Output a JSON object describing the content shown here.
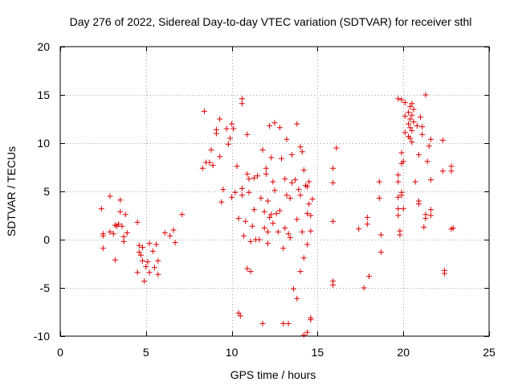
{
  "chart_data": {
    "type": "scatter",
    "title": "Day 276 of 2022, Sidereal Day-to-day VTEC variation (SDTVAR) for receiver sthl",
    "xlabel": "GPS time / hours",
    "ylabel": "SDTVAR / TECUs",
    "xlim": [
      0,
      25
    ],
    "ylim": [
      -10,
      20
    ],
    "xticks": [
      0,
      5,
      10,
      15,
      20,
      25
    ],
    "yticks": [
      -10,
      -5,
      0,
      5,
      10,
      15,
      20
    ],
    "xtick_labels": [
      "0",
      "5",
      "10",
      "15",
      "20",
      "25"
    ],
    "ytick_labels": [
      "-10",
      "-5",
      "0",
      "5",
      "10",
      "15",
      "20"
    ],
    "grid": true,
    "marker": "+",
    "color": "#dd0000",
    "series": [
      {
        "name": "sthl",
        "points": [
          [
            2.4,
            3.2
          ],
          [
            2.5,
            0.6
          ],
          [
            2.5,
            0.4
          ],
          [
            2.5,
            -0.9
          ],
          [
            2.9,
            4.5
          ],
          [
            2.9,
            0.8
          ],
          [
            3.1,
            0.6
          ],
          [
            3.2,
            1.5
          ],
          [
            3.2,
            -2.1
          ],
          [
            3.3,
            1.4
          ],
          [
            3.4,
            1.6
          ],
          [
            3.5,
            4.1
          ],
          [
            3.5,
            2.9
          ],
          [
            3.6,
            1.4
          ],
          [
            3.7,
            0.3
          ],
          [
            3.7,
            -0.2
          ],
          [
            3.8,
            2.6
          ],
          [
            3.9,
            0.7
          ],
          [
            4.5,
            1.8
          ],
          [
            4.5,
            -3.4
          ],
          [
            4.6,
            -0.6
          ],
          [
            4.6,
            -1.3
          ],
          [
            4.7,
            -1.6
          ],
          [
            4.8,
            -2.2
          ],
          [
            4.8,
            -0.8
          ],
          [
            4.9,
            -4.3
          ],
          [
            5.0,
            -2.8
          ],
          [
            5.1,
            -2.3
          ],
          [
            5.2,
            -3.4
          ],
          [
            5.2,
            -0.4
          ],
          [
            5.4,
            -1.2
          ],
          [
            5.5,
            -2.9
          ],
          [
            5.6,
            -0.5
          ],
          [
            5.7,
            -2.2
          ],
          [
            5.7,
            -3.6
          ],
          [
            6.1,
            0.7
          ],
          [
            6.4,
            0.4
          ],
          [
            6.6,
            1.0
          ],
          [
            6.7,
            -0.3
          ],
          [
            7.1,
            2.6
          ],
          [
            8.3,
            7.4
          ],
          [
            8.4,
            13.3
          ],
          [
            8.5,
            8.0
          ],
          [
            8.7,
            8.0
          ],
          [
            8.8,
            9.3
          ],
          [
            8.9,
            7.7
          ],
          [
            9.1,
            11.4
          ],
          [
            9.1,
            11.0
          ],
          [
            9.3,
            8.6
          ],
          [
            9.3,
            12.5
          ],
          [
            9.4,
            3.9
          ],
          [
            9.5,
            5.2
          ],
          [
            9.7,
            11.5
          ],
          [
            9.8,
            9.9
          ],
          [
            9.9,
            10.5
          ],
          [
            10.0,
            4.4
          ],
          [
            10.0,
            12.0
          ],
          [
            10.1,
            11.5
          ],
          [
            10.2,
            4.9
          ],
          [
            10.3,
            7.6
          ],
          [
            10.4,
            2.2
          ],
          [
            10.4,
            -7.6
          ],
          [
            10.5,
            -7.9
          ],
          [
            10.6,
            14.6
          ],
          [
            10.6,
            14.1
          ],
          [
            10.6,
            5.3
          ],
          [
            10.6,
            4.6
          ],
          [
            10.7,
            0.4
          ],
          [
            10.8,
            1.9
          ],
          [
            10.9,
            -3.0
          ],
          [
            10.9,
            10.9
          ],
          [
            10.9,
            6.8
          ],
          [
            11.0,
            6.3
          ],
          [
            11.0,
            4.9
          ],
          [
            11.1,
            -0.2
          ],
          [
            11.1,
            -3.3
          ],
          [
            11.2,
            1.4
          ],
          [
            11.3,
            6.4
          ],
          [
            11.3,
            3.1
          ],
          [
            11.4,
            0.0
          ],
          [
            11.5,
            6.6
          ],
          [
            11.6,
            0.0
          ],
          [
            11.7,
            4.3
          ],
          [
            11.8,
            9.3
          ],
          [
            11.8,
            -8.7
          ],
          [
            11.9,
            2.9
          ],
          [
            11.9,
            1.2
          ],
          [
            12.0,
            7.4
          ],
          [
            12.0,
            6.8
          ],
          [
            12.1,
            4.0
          ],
          [
            12.1,
            0.8
          ],
          [
            12.1,
            -0.4
          ],
          [
            12.2,
            11.8
          ],
          [
            12.2,
            2.3
          ],
          [
            12.3,
            8.5
          ],
          [
            12.3,
            2.6
          ],
          [
            12.4,
            6.0
          ],
          [
            12.4,
            1.7
          ],
          [
            12.5,
            12.1
          ],
          [
            12.5,
            5.1
          ],
          [
            12.6,
            2.7
          ],
          [
            12.7,
            0.8
          ],
          [
            12.8,
            11.6
          ],
          [
            12.8,
            3.0
          ],
          [
            12.9,
            8.4
          ],
          [
            13.0,
            -0.9
          ],
          [
            13.0,
            -8.7
          ],
          [
            13.1,
            6.3
          ],
          [
            13.1,
            1.2
          ],
          [
            13.2,
            10.4
          ],
          [
            13.2,
            4.6
          ],
          [
            13.3,
            0.6
          ],
          [
            13.3,
            -8.7
          ],
          [
            13.4,
            4.3
          ],
          [
            13.4,
            0.2
          ],
          [
            13.5,
            8.8
          ],
          [
            13.5,
            5.9
          ],
          [
            13.6,
            -5.1
          ],
          [
            13.7,
            6.2
          ],
          [
            13.8,
            12.0
          ],
          [
            13.8,
            2.1
          ],
          [
            13.8,
            -6.1
          ],
          [
            13.9,
            5.2
          ],
          [
            14.0,
            9.6
          ],
          [
            14.0,
            4.6
          ],
          [
            14.0,
            -3.3
          ],
          [
            14.1,
            9.1
          ],
          [
            14.1,
            0.8
          ],
          [
            14.2,
            7.2
          ],
          [
            14.2,
            -1.9
          ],
          [
            14.2,
            -9.9
          ],
          [
            14.3,
            5.6
          ],
          [
            14.4,
            5.5
          ],
          [
            14.4,
            2.7
          ],
          [
            14.4,
            -0.5
          ],
          [
            14.4,
            -9.6
          ],
          [
            14.5,
            6.0
          ],
          [
            14.5,
            3.7
          ],
          [
            14.6,
            2.5
          ],
          [
            14.6,
            0.9
          ],
          [
            14.6,
            -8.1
          ],
          [
            14.6,
            -8.3
          ],
          [
            14.7,
            4.2
          ],
          [
            15.9,
            7.4
          ],
          [
            15.9,
            5.9
          ],
          [
            15.9,
            1.9
          ],
          [
            15.9,
            -4.3
          ],
          [
            15.9,
            -4.7
          ],
          [
            16.1,
            9.5
          ],
          [
            17.4,
            1.1
          ],
          [
            17.7,
            -5.0
          ],
          [
            17.9,
            2.3
          ],
          [
            17.9,
            1.6
          ],
          [
            18.0,
            -3.8
          ],
          [
            18.6,
            6.0
          ],
          [
            18.6,
            4.3
          ],
          [
            18.7,
            0.5
          ],
          [
            18.7,
            -1.3
          ],
          [
            19.7,
            14.6
          ],
          [
            19.7,
            6.7
          ],
          [
            19.7,
            6.0
          ],
          [
            19.7,
            4.4
          ],
          [
            19.7,
            3.2
          ],
          [
            19.7,
            2.5
          ],
          [
            19.8,
            0.9
          ],
          [
            19.8,
            0.5
          ],
          [
            19.9,
            14.5
          ],
          [
            19.9,
            9.0
          ],
          [
            19.9,
            7.9
          ],
          [
            19.9,
            4.9
          ],
          [
            19.9,
            4.6
          ],
          [
            20.0,
            8.1
          ],
          [
            20.0,
            3.2
          ],
          [
            20.1,
            14.2
          ],
          [
            20.1,
            12.8
          ],
          [
            20.1,
            11.1
          ],
          [
            20.3,
            13.2
          ],
          [
            20.3,
            12.0
          ],
          [
            20.3,
            10.7
          ],
          [
            20.4,
            13.8
          ],
          [
            20.4,
            12.5
          ],
          [
            20.4,
            11.6
          ],
          [
            20.4,
            10.5
          ],
          [
            20.5,
            14.1
          ],
          [
            20.5,
            12.9
          ],
          [
            20.5,
            11.3
          ],
          [
            20.5,
            10.1
          ],
          [
            20.6,
            13.5
          ],
          [
            20.6,
            12.2
          ],
          [
            20.7,
            6.0
          ],
          [
            20.8,
            11.8
          ],
          [
            20.9,
            8.8
          ],
          [
            20.9,
            4.0
          ],
          [
            20.9,
            3.7
          ],
          [
            21.0,
            12.7
          ],
          [
            21.1,
            11.7
          ],
          [
            21.1,
            10.9
          ],
          [
            21.2,
            1.3
          ],
          [
            21.3,
            15.0
          ],
          [
            21.3,
            2.6
          ],
          [
            21.3,
            2.2
          ],
          [
            21.4,
            8.1
          ],
          [
            21.5,
            9.7
          ],
          [
            21.6,
            10.4
          ],
          [
            21.6,
            3.1
          ],
          [
            21.6,
            6.2
          ],
          [
            21.6,
            2.5
          ],
          [
            22.3,
            10.3
          ],
          [
            22.3,
            7.1
          ],
          [
            22.4,
            -3.2
          ],
          [
            22.4,
            -3.5
          ],
          [
            22.8,
            7.6
          ],
          [
            22.8,
            7.1
          ],
          [
            22.9,
            1.2
          ],
          [
            22.8,
            1.1
          ]
        ]
      }
    ]
  }
}
